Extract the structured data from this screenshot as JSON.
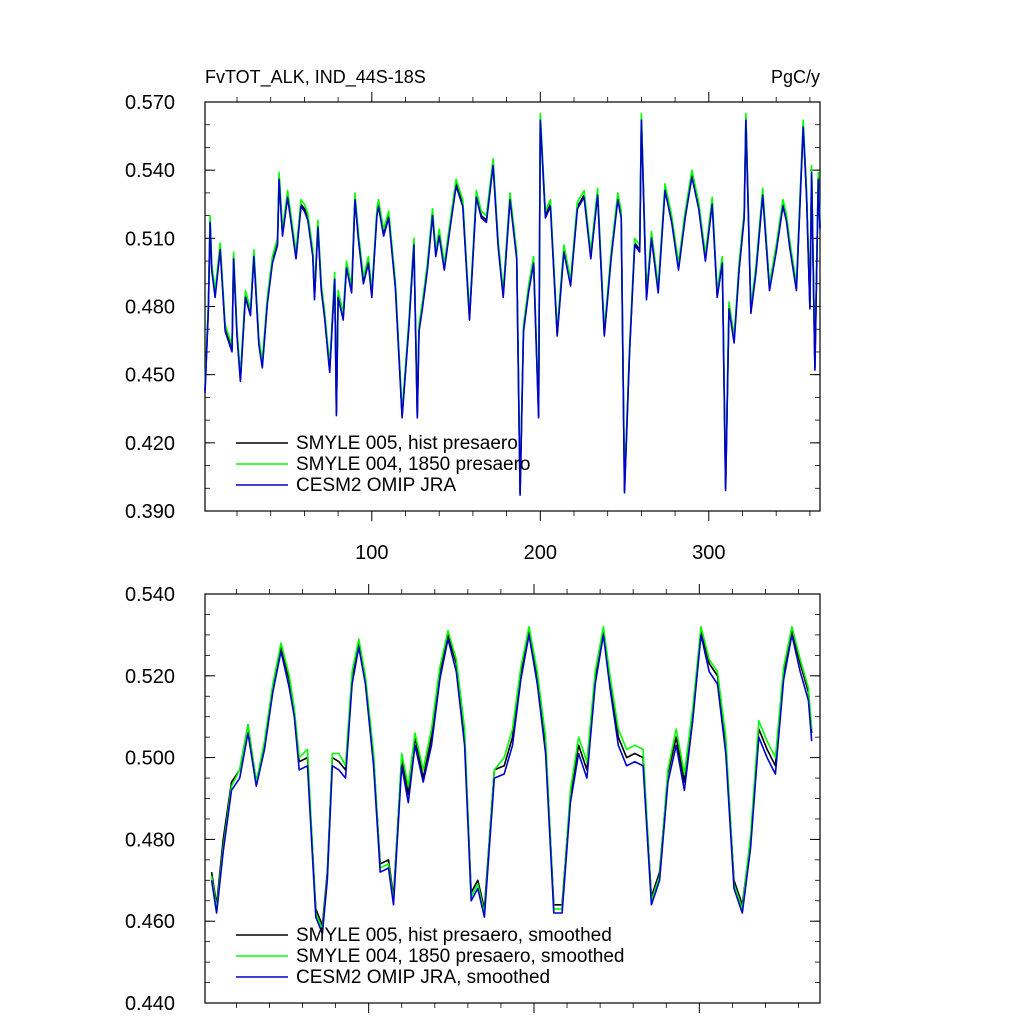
{
  "chart_data": [
    {
      "type": "line",
      "title": "FvTOT_ALK, IND_44S-18S",
      "units": "PgC/y",
      "xlim": [
        1,
        366
      ],
      "ylim": [
        0.39,
        0.57
      ],
      "xticks": [
        100,
        200,
        300
      ],
      "xtick_labels": [
        "100",
        "200",
        "300"
      ],
      "yticks": [
        0.39,
        0.42,
        0.45,
        0.48,
        0.51,
        0.54,
        0.57
      ],
      "ytick_labels": [
        "0.390",
        "0.420",
        "0.450",
        "0.480",
        "0.510",
        "0.540",
        "0.570"
      ],
      "legend_position": "bottom-left",
      "grid": false,
      "x": [
        1,
        3,
        4,
        5,
        7,
        10,
        13,
        17,
        18,
        20,
        22,
        25,
        28,
        30,
        33,
        35,
        38,
        41,
        44,
        45,
        47,
        50,
        53,
        55,
        58,
        60,
        62,
        65,
        66,
        68,
        70,
        72,
        75,
        78,
        79,
        80,
        83,
        85,
        88,
        90,
        92,
        95,
        98,
        100,
        103,
        104,
        107,
        110,
        114,
        118,
        122,
        125,
        127,
        128,
        130,
        133,
        136,
        138,
        140,
        143,
        146,
        150,
        154,
        158,
        162,
        165,
        168,
        172,
        175,
        178,
        182,
        186,
        188,
        190,
        193,
        196,
        199,
        200,
        203,
        206,
        210,
        214,
        218,
        222,
        226,
        230,
        234,
        238,
        242,
        246,
        248,
        250,
        253,
        256,
        259,
        260,
        263,
        266,
        270,
        274,
        278,
        282,
        286,
        290,
        294,
        298,
        302,
        305,
        308,
        310,
        312,
        315,
        318,
        321,
        322,
        325,
        328,
        332,
        336,
        340,
        344,
        346,
        348,
        352,
        356,
        358,
        360,
        361,
        363,
        365,
        366
      ],
      "series": [
        {
          "name": "SMYLE 005, hist presaero",
          "color": "#000000",
          "values": [
            0.443,
            0.48,
            0.518,
            0.497,
            0.485,
            0.506,
            0.47,
            0.461,
            0.502,
            0.468,
            0.448,
            0.485,
            0.477,
            0.503,
            0.464,
            0.454,
            0.482,
            0.5,
            0.508,
            0.537,
            0.512,
            0.529,
            0.513,
            0.502,
            0.525,
            0.523,
            0.519,
            0.503,
            0.484,
            0.516,
            0.488,
            0.476,
            0.452,
            0.493,
            0.433,
            0.485,
            0.475,
            0.498,
            0.487,
            0.528,
            0.511,
            0.491,
            0.5,
            0.485,
            0.521,
            0.525,
            0.512,
            0.52,
            0.489,
            0.432,
            0.472,
            0.508,
            0.432,
            0.47,
            0.48,
            0.497,
            0.521,
            0.503,
            0.512,
            0.497,
            0.513,
            0.534,
            0.525,
            0.475,
            0.529,
            0.52,
            0.518,
            0.543,
            0.507,
            0.485,
            0.528,
            0.502,
            0.398,
            0.47,
            0.487,
            0.5,
            0.432,
            0.563,
            0.52,
            0.525,
            0.468,
            0.505,
            0.49,
            0.524,
            0.529,
            0.502,
            0.53,
            0.468,
            0.502,
            0.528,
            0.52,
            0.399,
            0.461,
            0.508,
            0.505,
            0.563,
            0.484,
            0.511,
            0.487,
            0.532,
            0.518,
            0.497,
            0.52,
            0.538,
            0.524,
            0.501,
            0.526,
            0.485,
            0.5,
            0.4,
            0.48,
            0.465,
            0.497,
            0.52,
            0.563,
            0.478,
            0.496,
            0.53,
            0.488,
            0.505,
            0.525,
            0.519,
            0.507,
            0.488,
            0.56,
            0.53,
            0.48,
            0.54,
            0.453,
            0.537,
            0.515
          ]
        },
        {
          "name": "SMYLE 004, 1850 presaero",
          "color": "#00ff00",
          "values": [
            0.445,
            0.482,
            0.52,
            0.499,
            0.487,
            0.508,
            0.472,
            0.463,
            0.504,
            0.47,
            0.45,
            0.487,
            0.479,
            0.505,
            0.466,
            0.456,
            0.484,
            0.502,
            0.51,
            0.539,
            0.514,
            0.531,
            0.515,
            0.504,
            0.527,
            0.525,
            0.521,
            0.505,
            0.486,
            0.518,
            0.49,
            0.478,
            0.454,
            0.495,
            0.435,
            0.487,
            0.477,
            0.5,
            0.489,
            0.53,
            0.513,
            0.493,
            0.502,
            0.487,
            0.523,
            0.527,
            0.514,
            0.522,
            0.491,
            0.434,
            0.474,
            0.51,
            0.434,
            0.472,
            0.482,
            0.499,
            0.523,
            0.505,
            0.514,
            0.499,
            0.515,
            0.536,
            0.527,
            0.477,
            0.531,
            0.522,
            0.52,
            0.545,
            0.509,
            0.487,
            0.53,
            0.504,
            0.4,
            0.472,
            0.489,
            0.502,
            0.434,
            0.565,
            0.522,
            0.527,
            0.47,
            0.507,
            0.492,
            0.526,
            0.531,
            0.504,
            0.532,
            0.47,
            0.504,
            0.53,
            0.522,
            0.401,
            0.463,
            0.51,
            0.507,
            0.565,
            0.486,
            0.513,
            0.489,
            0.534,
            0.52,
            0.499,
            0.522,
            0.54,
            0.526,
            0.503,
            0.528,
            0.487,
            0.502,
            0.402,
            0.482,
            0.467,
            0.499,
            0.522,
            0.565,
            0.48,
            0.498,
            0.532,
            0.49,
            0.507,
            0.527,
            0.521,
            0.509,
            0.49,
            0.562,
            0.532,
            0.482,
            0.542,
            0.455,
            0.539,
            0.517
          ]
        },
        {
          "name": "CESM2 OMIP JRA",
          "color": "#0000cc",
          "values": [
            0.442,
            0.479,
            0.517,
            0.496,
            0.484,
            0.505,
            0.469,
            0.46,
            0.501,
            0.467,
            0.447,
            0.484,
            0.476,
            0.502,
            0.463,
            0.453,
            0.481,
            0.499,
            0.507,
            0.536,
            0.511,
            0.528,
            0.512,
            0.501,
            0.524,
            0.522,
            0.518,
            0.502,
            0.483,
            0.515,
            0.487,
            0.475,
            0.451,
            0.492,
            0.432,
            0.484,
            0.474,
            0.497,
            0.486,
            0.527,
            0.51,
            0.49,
            0.499,
            0.484,
            0.52,
            0.524,
            0.511,
            0.519,
            0.488,
            0.431,
            0.471,
            0.507,
            0.431,
            0.469,
            0.479,
            0.496,
            0.52,
            0.502,
            0.511,
            0.496,
            0.512,
            0.533,
            0.524,
            0.474,
            0.528,
            0.519,
            0.517,
            0.542,
            0.506,
            0.484,
            0.527,
            0.501,
            0.397,
            0.469,
            0.486,
            0.499,
            0.431,
            0.562,
            0.519,
            0.524,
            0.467,
            0.504,
            0.489,
            0.523,
            0.528,
            0.501,
            0.529,
            0.467,
            0.501,
            0.527,
            0.519,
            0.398,
            0.46,
            0.507,
            0.504,
            0.562,
            0.483,
            0.51,
            0.486,
            0.531,
            0.517,
            0.496,
            0.519,
            0.537,
            0.523,
            0.5,
            0.525,
            0.484,
            0.499,
            0.399,
            0.479,
            0.464,
            0.496,
            0.519,
            0.562,
            0.477,
            0.495,
            0.529,
            0.487,
            0.504,
            0.524,
            0.518,
            0.506,
            0.487,
            0.559,
            0.529,
            0.479,
            0.539,
            0.452,
            0.536,
            0.514
          ]
        }
      ]
    },
    {
      "type": "line",
      "xlim": [
        1,
        373
      ],
      "ylim": [
        0.44,
        0.54
      ],
      "xticks": [
        100,
        200,
        300
      ],
      "yticks": [
        0.44,
        0.46,
        0.48,
        0.5,
        0.52,
        0.54
      ],
      "ytick_labels": [
        "0.440",
        "0.460",
        "0.480",
        "0.500",
        "0.520",
        "0.540"
      ],
      "legend_position": "bottom-left",
      "grid": false,
      "x": [
        5,
        8,
        12,
        17,
        22,
        27,
        32,
        37,
        42,
        47,
        52,
        55,
        58,
        63,
        68,
        72,
        75,
        78,
        82,
        86,
        90,
        94,
        98,
        103,
        107,
        112,
        115,
        120,
        124,
        128,
        133,
        138,
        143,
        148,
        153,
        158,
        162,
        166,
        170,
        176,
        182,
        187,
        192,
        197,
        202,
        207,
        212,
        217,
        222,
        227,
        232,
        237,
        242,
        246,
        251,
        256,
        261,
        266,
        271,
        276,
        281,
        286,
        291,
        296,
        301,
        306,
        311,
        316,
        321,
        326,
        331,
        336,
        341,
        346,
        351,
        356,
        361,
        366,
        368
      ],
      "series": [
        {
          "name": "SMYLE 005, hist presaero, smoothed",
          "color": "#000000",
          "values": [
            0.472,
            0.464,
            0.48,
            0.494,
            0.497,
            0.508,
            0.494,
            0.503,
            0.517,
            0.527,
            0.519,
            0.511,
            0.499,
            0.5,
            0.463,
            0.459,
            0.472,
            0.5,
            0.499,
            0.497,
            0.52,
            0.528,
            0.519,
            0.5,
            0.474,
            0.475,
            0.466,
            0.5,
            0.491,
            0.505,
            0.495,
            0.505,
            0.521,
            0.53,
            0.523,
            0.505,
            0.467,
            0.47,
            0.463,
            0.497,
            0.498,
            0.505,
            0.521,
            0.531,
            0.52,
            0.503,
            0.464,
            0.464,
            0.491,
            0.503,
            0.497,
            0.52,
            0.531,
            0.519,
            0.505,
            0.5,
            0.501,
            0.5,
            0.466,
            0.472,
            0.496,
            0.505,
            0.494,
            0.511,
            0.531,
            0.523,
            0.52,
            0.503,
            0.47,
            0.464,
            0.48,
            0.507,
            0.502,
            0.498,
            0.521,
            0.531,
            0.523,
            0.516,
            0.506
          ]
        },
        {
          "name": "SMYLE 004, 1850 presaero, smoothed",
          "color": "#00ff00",
          "values": [
            0.471,
            0.463,
            0.478,
            0.493,
            0.497,
            0.508,
            0.494,
            0.504,
            0.518,
            0.528,
            0.52,
            0.512,
            0.5,
            0.502,
            0.462,
            0.458,
            0.471,
            0.501,
            0.501,
            0.498,
            0.521,
            0.529,
            0.52,
            0.501,
            0.473,
            0.474,
            0.465,
            0.501,
            0.493,
            0.506,
            0.497,
            0.507,
            0.522,
            0.531,
            0.524,
            0.507,
            0.466,
            0.469,
            0.462,
            0.497,
            0.5,
            0.507,
            0.522,
            0.532,
            0.521,
            0.505,
            0.463,
            0.463,
            0.492,
            0.505,
            0.499,
            0.521,
            0.532,
            0.52,
            0.507,
            0.502,
            0.503,
            0.502,
            0.465,
            0.471,
            0.497,
            0.507,
            0.496,
            0.512,
            0.532,
            0.524,
            0.521,
            0.505,
            0.469,
            0.463,
            0.481,
            0.509,
            0.504,
            0.5,
            0.522,
            0.532,
            0.524,
            0.517,
            0.507
          ]
        },
        {
          "name": "CESM2 OMIP JRA, smoothed",
          "color": "#0000cc",
          "values": [
            0.47,
            0.462,
            0.477,
            0.492,
            0.495,
            0.506,
            0.493,
            0.502,
            0.516,
            0.526,
            0.517,
            0.51,
            0.497,
            0.498,
            0.461,
            0.457,
            0.47,
            0.498,
            0.497,
            0.495,
            0.518,
            0.527,
            0.518,
            0.498,
            0.472,
            0.473,
            0.464,
            0.498,
            0.489,
            0.503,
            0.494,
            0.503,
            0.519,
            0.529,
            0.521,
            0.503,
            0.465,
            0.468,
            0.461,
            0.495,
            0.496,
            0.503,
            0.519,
            0.53,
            0.518,
            0.501,
            0.462,
            0.462,
            0.489,
            0.501,
            0.495,
            0.518,
            0.53,
            0.517,
            0.503,
            0.498,
            0.499,
            0.498,
            0.464,
            0.47,
            0.494,
            0.503,
            0.492,
            0.509,
            0.53,
            0.521,
            0.518,
            0.501,
            0.468,
            0.462,
            0.478,
            0.505,
            0.5,
            0.496,
            0.519,
            0.53,
            0.521,
            0.514,
            0.504
          ]
        }
      ]
    }
  ]
}
